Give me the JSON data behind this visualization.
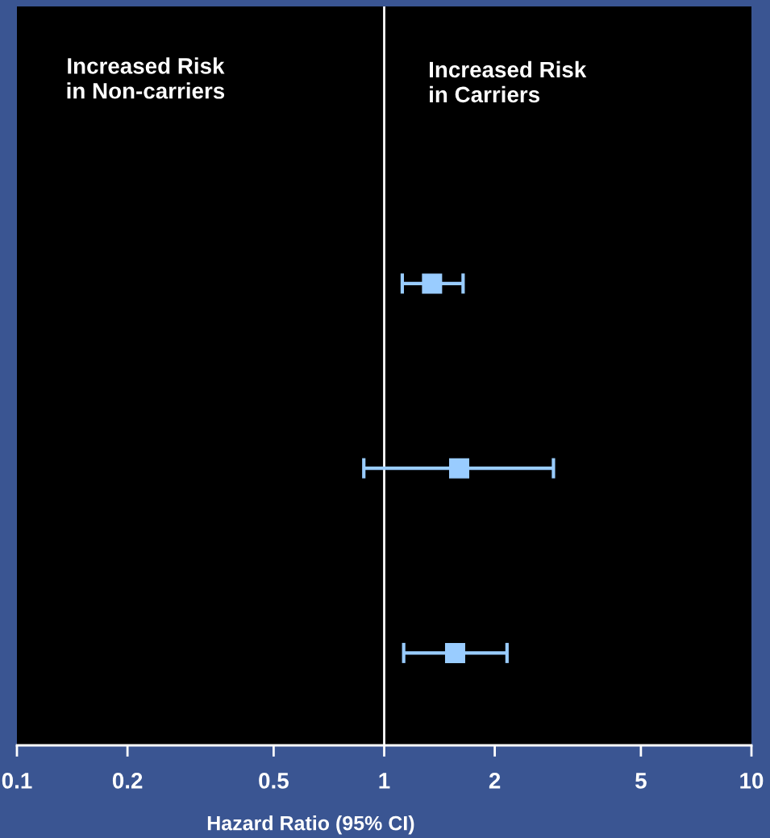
{
  "chart_data": {
    "type": "scatter",
    "orientation": "horizontal",
    "xlabel": "Hazard Ratio (95% CI)",
    "annotations": [
      "Increased Risk\nin Non-carriers",
      "Increased Risk\nin Carriers"
    ],
    "categories": [
      null,
      null,
      null,
      null
    ],
    "series": [
      {
        "color": "#99ccff",
        "values": [
          null,
          1.35,
          1.6,
          1.56
        ],
        "errors": [
          null,
          [
            1.12,
            1.64
          ],
          [
            0.88,
            2.89
          ],
          [
            1.13,
            2.16
          ]
        ]
      }
    ],
    "marker": "square",
    "log": "x",
    "xlim": [
      0.1,
      10
    ],
    "xticks": [
      0.1,
      0.2,
      0.5,
      1,
      2,
      5,
      10
    ],
    "ref_lines": [
      {
        "axis": "x",
        "value": 1,
        "color": "#ffffff"
      }
    ],
    "tick_labels": "x",
    "grid": false,
    "legend": false
  }
}
